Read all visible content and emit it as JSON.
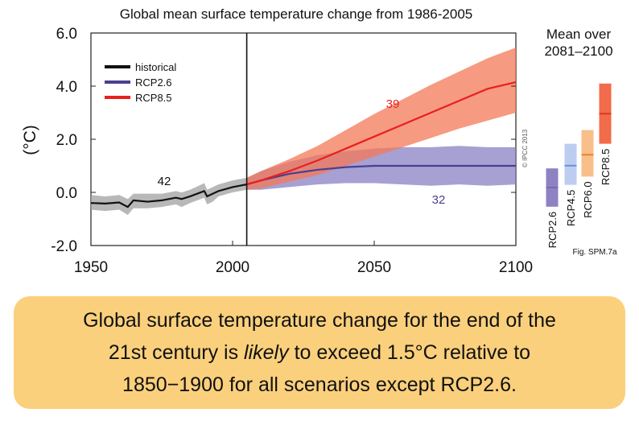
{
  "chart_data": {
    "type": "line",
    "title": "Global mean surface temperature change from 1986-2005",
    "ylabel": "(°C)",
    "xlabel": "",
    "xlim": [
      1950,
      2100
    ],
    "ylim": [
      -2.0,
      6.0
    ],
    "x_ticks": [
      "1950",
      "2000",
      "2050",
      "2100"
    ],
    "y_ticks": [
      "-2.0",
      "0.0",
      "2.0",
      "4.0",
      "6.0"
    ],
    "legend": {
      "placement": "top-left",
      "entries": [
        "historical",
        "RCP2.6",
        "RCP8.5"
      ]
    },
    "series": [
      {
        "name": "historical",
        "color": "#111111",
        "band_color": "#a0a0a0",
        "model_count": "42",
        "x": [
          1950,
          1955,
          1960,
          1963,
          1965,
          1970,
          1975,
          1980,
          1982,
          1985,
          1990,
          1991,
          1993,
          1995,
          2000,
          2005
        ],
        "y": [
          -0.4,
          -0.42,
          -0.38,
          -0.55,
          -0.3,
          -0.35,
          -0.3,
          -0.2,
          -0.25,
          -0.15,
          0.05,
          -0.15,
          -0.05,
          0.05,
          0.2,
          0.3
        ],
        "lower": [
          -0.65,
          -0.7,
          -0.65,
          -0.85,
          -0.6,
          -0.6,
          -0.55,
          -0.45,
          -0.55,
          -0.4,
          -0.2,
          -0.45,
          -0.35,
          -0.15,
          0.0,
          0.1
        ],
        "upper": [
          -0.1,
          -0.15,
          -0.1,
          -0.25,
          -0.05,
          -0.05,
          -0.05,
          0.05,
          0.0,
          0.1,
          0.35,
          0.1,
          0.2,
          0.3,
          0.45,
          0.55
        ]
      },
      {
        "name": "RCP2.6",
        "color": "#4a3f8f",
        "band_color": "#8a80c4",
        "model_count": "32",
        "x": [
          2005,
          2010,
          2020,
          2030,
          2040,
          2050,
          2060,
          2070,
          2080,
          2090,
          2100
        ],
        "y": [
          0.3,
          0.45,
          0.7,
          0.85,
          0.95,
          1.0,
          1.0,
          1.0,
          1.0,
          1.0,
          1.0
        ],
        "lower": [
          0.1,
          0.1,
          0.2,
          0.3,
          0.35,
          0.35,
          0.3,
          0.25,
          0.3,
          0.25,
          0.3
        ],
        "upper": [
          0.55,
          0.8,
          1.15,
          1.4,
          1.55,
          1.65,
          1.7,
          1.7,
          1.75,
          1.7,
          1.7
        ]
      },
      {
        "name": "RCP8.5",
        "color": "#e8201e",
        "band_color": "#f47858",
        "model_count": "39",
        "x": [
          2005,
          2010,
          2020,
          2030,
          2040,
          2050,
          2060,
          2070,
          2080,
          2090,
          2100
        ],
        "y": [
          0.3,
          0.45,
          0.8,
          1.2,
          1.65,
          2.1,
          2.55,
          3.0,
          3.45,
          3.9,
          4.15
        ],
        "lower": [
          0.1,
          0.15,
          0.4,
          0.65,
          1.0,
          1.35,
          1.7,
          2.05,
          2.4,
          2.7,
          3.0
        ],
        "upper": [
          0.55,
          0.8,
          1.25,
          1.75,
          2.35,
          2.95,
          3.5,
          4.05,
          4.55,
          5.05,
          5.45
        ]
      }
    ],
    "side_panel": {
      "title_line1": "Mean over",
      "title_line2": "2081–2100",
      "bars": [
        {
          "label": "RCP2.6",
          "mean": 1.0,
          "low": 0.3,
          "high": 1.7,
          "color": "#7a6ab5",
          "light": "#8f82c2"
        },
        {
          "label": "RCP4.5",
          "mean": 1.8,
          "low": 1.1,
          "high": 2.6,
          "color": "#6d8fd9",
          "light": "#bccdf0"
        },
        {
          "label": "RCP6.0",
          "mean": 2.2,
          "low": 1.4,
          "high": 3.1,
          "color": "#f08030",
          "light": "#f8bf8a"
        },
        {
          "label": "RCP8.5",
          "mean": 3.7,
          "low": 2.6,
          "high": 4.8,
          "color": "#d93a1f",
          "light": "#f26b4a"
        }
      ]
    },
    "copyright": "© IPCC 2013",
    "figure_ref": "Fig. SPM.7a"
  },
  "caption": {
    "line1": "Global surface temperature change for the end of the",
    "line2_before": "21st century is ",
    "line2_emph": "likely",
    "line2_after": " to exceed 1.5°C relative to",
    "line3": "1850−1900 for all scenarios except RCP2.6."
  }
}
